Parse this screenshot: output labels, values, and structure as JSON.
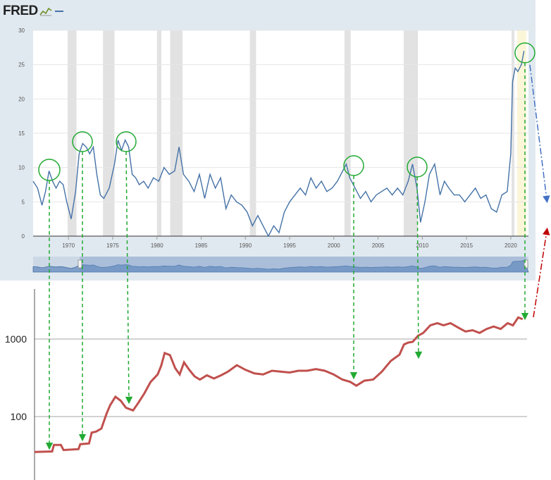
{
  "brand": {
    "name": "FRED",
    "logo_icon": "fred-graph-icon"
  },
  "chart_data": [
    {
      "type": "line",
      "title": "",
      "xlabel": "",
      "ylabel": "",
      "xlim": [
        1966,
        2022
      ],
      "ylim": [
        0,
        30
      ],
      "y_ticks": [
        "0",
        "5",
        "10",
        "15",
        "20",
        "25",
        "30"
      ],
      "y_tick_values": [
        0,
        5,
        10,
        15,
        20,
        25,
        30
      ],
      "x_ticks": [
        "1970",
        "1975",
        "1980",
        "1985",
        "1990",
        "1995",
        "2000",
        "2005",
        "2010",
        "2015",
        "2020"
      ],
      "x_tick_values": [
        1970,
        1975,
        1980,
        1985,
        1990,
        1995,
        2000,
        2005,
        2010,
        2015,
        2020
      ],
      "grid": "horizontal",
      "recessions": [
        [
          1969.9,
          1970.9
        ],
        [
          1973.9,
          1975.2
        ],
        [
          1980.0,
          1980.5
        ],
        [
          1981.5,
          1982.9
        ],
        [
          1990.5,
          1991.2
        ],
        [
          2001.2,
          2001.9
        ],
        [
          2007.9,
          2009.5
        ],
        [
          2020.1,
          2020.4
        ]
      ],
      "line_color": "#4572a7",
      "series": [
        {
          "x": [
            1966.0,
            1966.5,
            1967.0,
            1967.4,
            1967.8,
            1968.2,
            1968.6,
            1969.0,
            1969.4,
            1969.8,
            1970.3,
            1970.8,
            1971.2,
            1971.6,
            1972.0,
            1972.4,
            1972.8,
            1973.2,
            1973.6,
            1974.0,
            1974.6,
            1975.2,
            1975.6,
            1976.0,
            1976.4,
            1976.8,
            1977.2,
            1977.6,
            1978.0,
            1978.5,
            1979.0,
            1979.6,
            1980.2,
            1980.8,
            1981.4,
            1982.0,
            1982.5,
            1983.0,
            1983.6,
            1984.2,
            1984.8,
            1985.4,
            1986.0,
            1986.6,
            1987.2,
            1987.8,
            1988.4,
            1989.0,
            1989.6,
            1990.2,
            1990.8,
            1991.4,
            1992.0,
            1992.6,
            1993.2,
            1993.8,
            1994.4,
            1995.0,
            1995.6,
            1996.2,
            1996.8,
            1997.4,
            1998.0,
            1998.6,
            1999.2,
            1999.8,
            2000.4,
            2001.0,
            2001.4,
            2001.8,
            2002.4,
            2003.0,
            2003.6,
            2004.2,
            2004.8,
            2005.4,
            2006.0,
            2006.6,
            2007.2,
            2007.8,
            2008.4,
            2008.9,
            2009.4,
            2009.8,
            2010.3,
            2010.8,
            2011.4,
            2012.0,
            2012.5,
            2013.0,
            2013.6,
            2014.2,
            2014.8,
            2015.4,
            2016.0,
            2016.6,
            2017.2,
            2017.8,
            2018.4,
            2019.0,
            2019.6,
            2020.0,
            2020.2,
            2020.5,
            2020.8,
            2021.2,
            2021.5
          ],
          "values": [
            8,
            7,
            4.5,
            6.5,
            9.5,
            8,
            7,
            8,
            7.5,
            5,
            2.5,
            6.5,
            12,
            13.5,
            13,
            12,
            13,
            9,
            6,
            5.5,
            7,
            10.5,
            14,
            12.5,
            14,
            13,
            9,
            8.5,
            7.5,
            8,
            7,
            8.5,
            8,
            10,
            9,
            9.5,
            13,
            9,
            8,
            6.5,
            9,
            5.5,
            9,
            7,
            8.5,
            4,
            6,
            5,
            4.5,
            3.5,
            1.5,
            3,
            1.5,
            0,
            1.5,
            0.5,
            3.5,
            5,
            6,
            7,
            6,
            8.5,
            7,
            8,
            6.5,
            7,
            8,
            9.5,
            10.5,
            8.5,
            7,
            5.5,
            6.5,
            5,
            6,
            6.5,
            7,
            6,
            7,
            6,
            8,
            10.5,
            7,
            2,
            5,
            9,
            10.5,
            6,
            8,
            7,
            6,
            6,
            5,
            6,
            7,
            5.5,
            6,
            4,
            3.5,
            6,
            6.5,
            12,
            22.5,
            24.5,
            24,
            25,
            27
          ]
        }
      ]
    },
    {
      "type": "line",
      "title": "",
      "xlabel": "",
      "ylabel": "",
      "yscale": "log",
      "ylim": [
        30,
        4000
      ],
      "xlim": [
        1966,
        2022
      ],
      "y_ticks": [
        "100",
        "1000"
      ],
      "y_tick_values": [
        100,
        1000
      ],
      "grid": "horizontal",
      "line_color": "#c0504d",
      "series": [
        {
          "x": [
            1966.0,
            1968.0,
            1968.2,
            1969.0,
            1969.3,
            1971.0,
            1971.2,
            1972.2,
            1972.5,
            1973.0,
            1973.6,
            1974.2,
            1974.6,
            1975.2,
            1975.8,
            1976.4,
            1977.2,
            1977.8,
            1978.5,
            1979.2,
            1980.0,
            1980.4,
            1980.8,
            1981.4,
            1982.0,
            1982.5,
            1983.0,
            1983.6,
            1984.2,
            1984.8,
            1985.6,
            1986.4,
            1987.2,
            1988.0,
            1989.0,
            1990.0,
            1991.0,
            1992.0,
            1993.0,
            1994.0,
            1995.0,
            1996.0,
            1997.0,
            1998.0,
            1999.0,
            2000.0,
            2001.0,
            2001.9,
            2002.6,
            2003.5,
            2004.5,
            2005.5,
            2006.5,
            2007.5,
            2008.0,
            2008.5,
            2009.0,
            2009.6,
            2010.2,
            2011.0,
            2011.8,
            2012.5,
            2013.3,
            2014.2,
            2015.0,
            2015.8,
            2016.6,
            2017.4,
            2018.2,
            2019.0,
            2019.8,
            2020.4,
            2021.0,
            2021.5
          ],
          "values": [
            35,
            35.5,
            43,
            43,
            37,
            38,
            44,
            45,
            62,
            64,
            70,
            110,
            140,
            180,
            160,
            130,
            120,
            150,
            200,
            280,
            350,
            450,
            660,
            620,
            420,
            350,
            500,
            400,
            330,
            300,
            340,
            310,
            340,
            380,
            460,
            400,
            360,
            350,
            390,
            380,
            370,
            390,
            390,
            410,
            390,
            350,
            300,
            280,
            250,
            290,
            300,
            380,
            520,
            630,
            850,
            900,
            920,
            1100,
            1200,
            1500,
            1600,
            1500,
            1600,
            1400,
            1250,
            1300,
            1200,
            1350,
            1450,
            1350,
            1600,
            1500,
            1900,
            1800
          ]
        }
      ]
    }
  ]
}
